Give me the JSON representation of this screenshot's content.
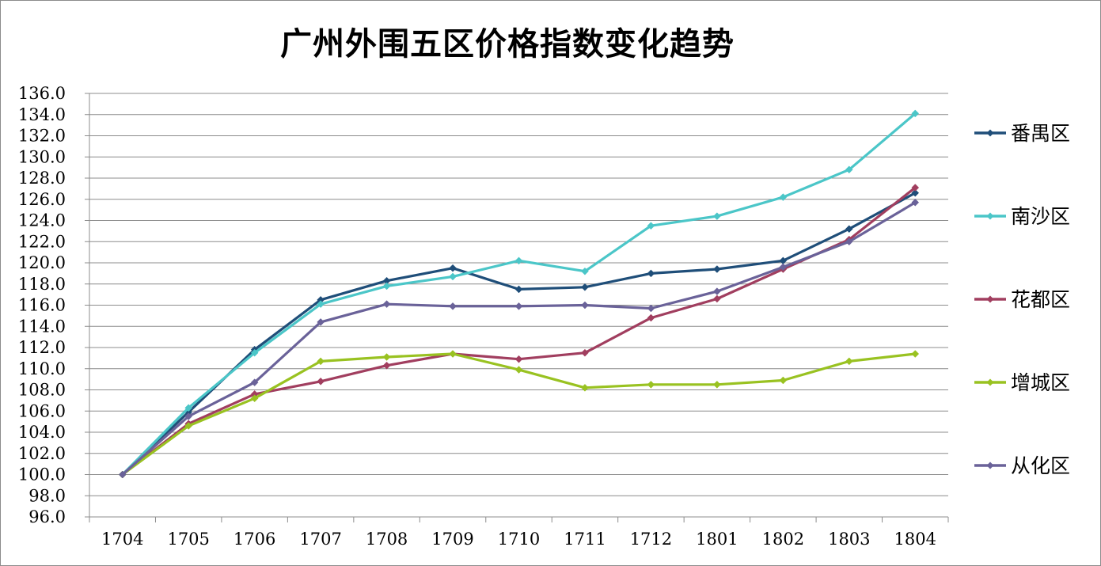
{
  "chart_data": {
    "type": "line",
    "title": "广州外围五区价格指数变化趋势",
    "xlabel": "",
    "ylabel": "",
    "x": [
      "1704",
      "1705",
      "1706",
      "1707",
      "1708",
      "1709",
      "1710",
      "1711",
      "1712",
      "1801",
      "1802",
      "1803",
      "1804"
    ],
    "ylim": [
      96.0,
      136.0
    ],
    "ytick_step": 2.0,
    "y_tick_decimals": 1,
    "grid": true,
    "legend_position": "right",
    "series": [
      {
        "name": "番禺区",
        "color": "#1f4e79",
        "values": [
          100.0,
          105.9,
          111.8,
          116.5,
          118.3,
          119.5,
          117.5,
          117.7,
          119.0,
          119.4,
          120.2,
          123.2,
          126.6
        ]
      },
      {
        "name": "南沙区",
        "color": "#4bc6c8",
        "values": [
          100.0,
          106.3,
          111.5,
          116.1,
          117.8,
          118.7,
          120.2,
          119.2,
          123.5,
          124.4,
          126.2,
          128.8,
          134.1
        ]
      },
      {
        "name": "花都区",
        "color": "#a13e5f",
        "values": [
          100.0,
          104.8,
          107.6,
          108.8,
          110.3,
          111.4,
          110.9,
          111.5,
          114.8,
          116.6,
          119.4,
          122.2,
          127.1
        ]
      },
      {
        "name": "增城区",
        "color": "#99c221",
        "values": [
          100.0,
          104.6,
          107.2,
          110.7,
          111.1,
          111.4,
          109.9,
          108.2,
          108.5,
          108.5,
          108.9,
          110.7,
          111.4
        ]
      },
      {
        "name": "从化区",
        "color": "#6a6299",
        "values": [
          100.0,
          105.5,
          108.7,
          114.4,
          116.1,
          115.9,
          115.9,
          116.0,
          115.7,
          117.3,
          119.6,
          122.0,
          125.7
        ]
      }
    ]
  }
}
